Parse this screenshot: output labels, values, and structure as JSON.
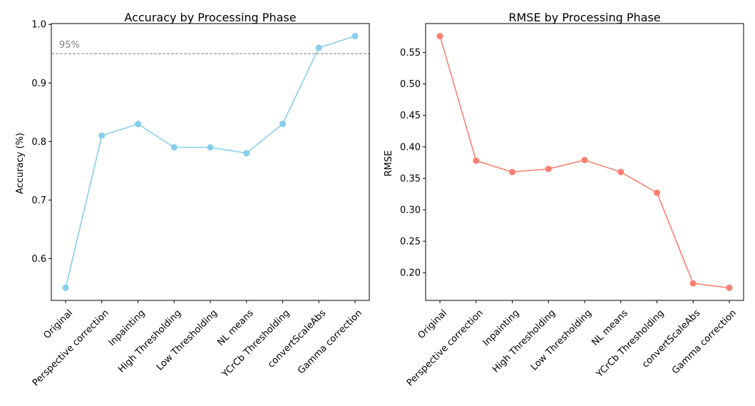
{
  "chart_data": [
    {
      "type": "line",
      "title": "Accuracy by Processing Phase",
      "xlabel": "",
      "ylabel": "Accuracy (%)",
      "categories": [
        "Original",
        "Perspective correction",
        "Inpainting",
        "High Thresholding",
        "Low Thresholding",
        "NL means",
        "YCrCb Thresholding",
        "convertScaleAbs",
        "Gamma correction"
      ],
      "series": [
        {
          "name": "Accuracy",
          "color": "#87ceeb",
          "values": [
            0.55,
            0.81,
            0.83,
            0.79,
            0.79,
            0.78,
            0.83,
            0.96,
            0.98
          ]
        }
      ],
      "ylim": [
        0.5285,
        1.0015
      ],
      "yticks": [
        0.6,
        0.7,
        0.8,
        0.9,
        1.0
      ],
      "ytick_labels": [
        "0.6",
        "0.7",
        "0.8",
        "0.9",
        "1.0"
      ],
      "reference_line": {
        "value": 0.95,
        "label": "95%",
        "color": "#808080"
      },
      "grid": false
    },
    {
      "type": "line",
      "title": "RMSE by Processing Phase",
      "xlabel": "",
      "ylabel": "RMSE",
      "categories": [
        "Original",
        "Perspective correction",
        "Inpainting",
        "High Thresholding",
        "Low Thresholding",
        "NL means",
        "YCrCb Thresholding",
        "convertScaleAbs",
        "Gamma correction"
      ],
      "series": [
        {
          "name": "RMSE",
          "color": "#fa8072",
          "values": [
            0.576,
            0.378,
            0.36,
            0.365,
            0.379,
            0.36,
            0.327,
            0.183,
            0.176
          ]
        }
      ],
      "ylim": [
        0.156,
        0.596
      ],
      "yticks": [
        0.2,
        0.25,
        0.3,
        0.35,
        0.4,
        0.45,
        0.5,
        0.55
      ],
      "ytick_labels": [
        "0.20",
        "0.25",
        "0.30",
        "0.35",
        "0.40",
        "0.45",
        "0.50",
        "0.55"
      ],
      "grid": false
    }
  ]
}
